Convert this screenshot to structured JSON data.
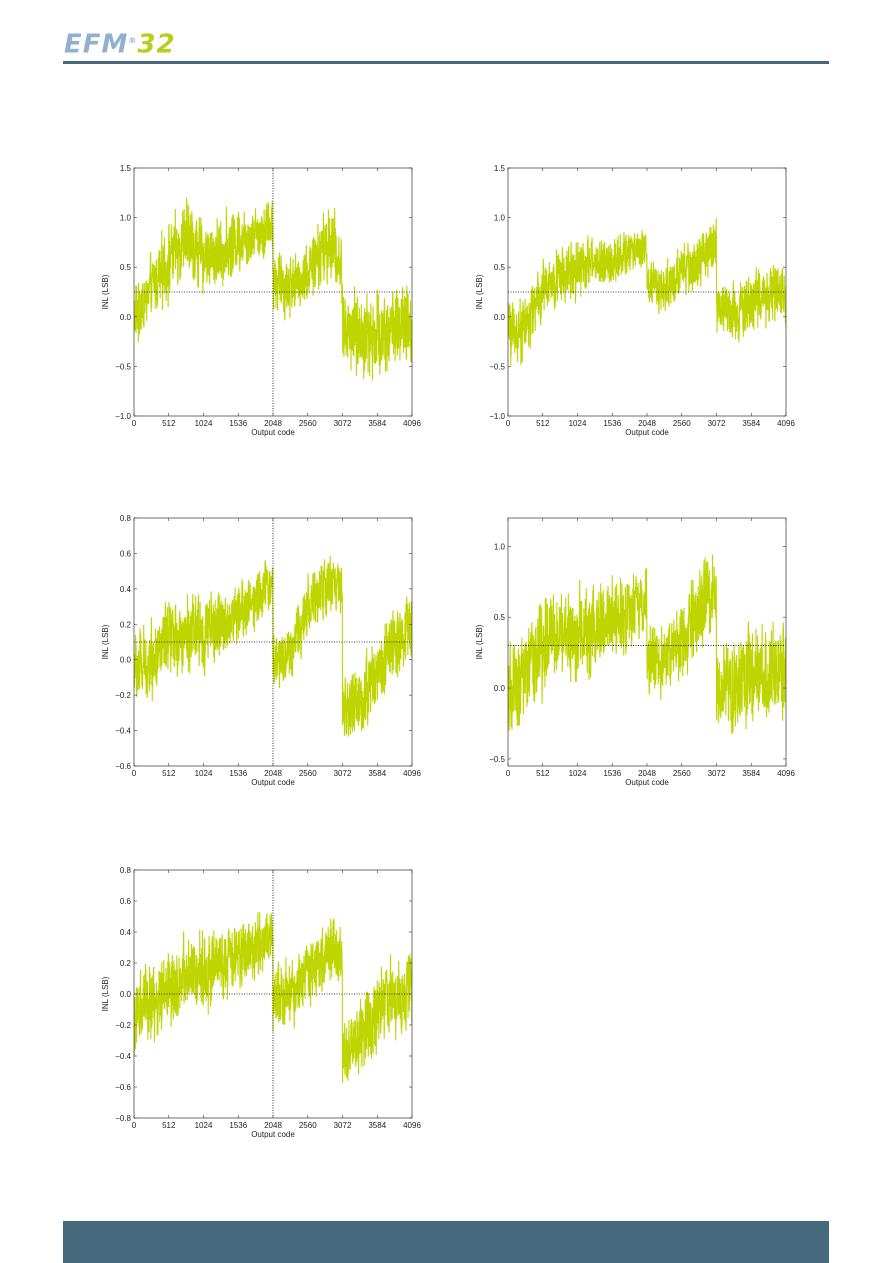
{
  "header": {
    "logo_text_primary": "EFM",
    "logo_text_secondary": "32",
    "logo_mark": "®",
    "accent_color": "#b9cd1c",
    "logo_color": "#8fb1cf",
    "rule_color": "#46697e"
  },
  "footer": {
    "bar_color": "#46697e"
  },
  "chart_data": [
    {
      "type": "line",
      "xlabel": "Output code",
      "ylabel": "INL (LSB)",
      "xlim": [
        0,
        4096
      ],
      "ylim": [
        -1.0,
        1.5
      ],
      "xticks": [
        0,
        512,
        1024,
        1536,
        2048,
        2560,
        3072,
        3584,
        4096
      ],
      "xtick_labels": [
        "0",
        "512",
        "1024",
        "1536",
        "2048",
        "2560",
        "3072",
        "3584",
        "4096"
      ],
      "yticks": [
        -1.0,
        -0.5,
        0.0,
        0.5,
        1.0,
        1.5
      ],
      "ytick_labels": [
        "−1.0",
        "−0.5",
        "0.0",
        "0.5",
        "1.0",
        "1.5"
      ],
      "reference_line_y": 0.25,
      "vertical_line_x": 2048,
      "line_color": "#bed500",
      "envelope": {
        "x": [
          0,
          128,
          256,
          512,
          768,
          1024,
          1280,
          1536,
          1792,
          2047,
          2048,
          2304,
          2560,
          2816,
          2944,
          3071,
          3072,
          3328,
          3584,
          3840,
          4095
        ],
        "center": [
          0.0,
          0.1,
          0.3,
          0.55,
          0.8,
          0.6,
          0.65,
          0.8,
          0.85,
          0.95,
          0.35,
          0.3,
          0.45,
          0.7,
          0.75,
          0.4,
          -0.1,
          -0.2,
          -0.15,
          -0.1,
          -0.15
        ],
        "spread": [
          0.35,
          0.4,
          0.35,
          0.45,
          0.45,
          0.4,
          0.4,
          0.4,
          0.35,
          0.35,
          0.35,
          0.35,
          0.35,
          0.45,
          0.45,
          0.35,
          0.45,
          0.5,
          0.5,
          0.5,
          0.5
        ]
      }
    },
    {
      "type": "line",
      "xlabel": "Output code",
      "ylabel": "INL (LSB)",
      "xlim": [
        0,
        4096
      ],
      "ylim": [
        -1.0,
        1.5
      ],
      "xticks": [
        0,
        512,
        1024,
        1536,
        2048,
        2560,
        3072,
        3584,
        4096
      ],
      "xtick_labels": [
        "0",
        "512",
        "1024",
        "1536",
        "2048",
        "2560",
        "3072",
        "3584",
        "4096"
      ],
      "yticks": [
        -1.0,
        -0.5,
        0.0,
        0.5,
        1.0,
        1.5
      ],
      "ytick_labels": [
        "−1.0",
        "−0.5",
        "0.0",
        "0.5",
        "1.0",
        "1.5"
      ],
      "reference_line_y": 0.25,
      "vertical_line_x": null,
      "line_color": "#bed500",
      "envelope": {
        "x": [
          0,
          128,
          256,
          512,
          768,
          1024,
          1280,
          1536,
          1792,
          2047,
          2048,
          2304,
          2560,
          2816,
          2944,
          3071,
          3072,
          3328,
          3584,
          3840,
          4095
        ],
        "center": [
          -0.1,
          -0.15,
          -0.1,
          0.25,
          0.4,
          0.5,
          0.55,
          0.55,
          0.65,
          0.7,
          0.3,
          0.3,
          0.45,
          0.55,
          0.65,
          0.8,
          0.1,
          0.05,
          0.15,
          0.25,
          0.2
        ],
        "spread": [
          0.35,
          0.4,
          0.35,
          0.35,
          0.35,
          0.35,
          0.3,
          0.3,
          0.25,
          0.25,
          0.25,
          0.3,
          0.3,
          0.3,
          0.3,
          0.3,
          0.3,
          0.35,
          0.35,
          0.35,
          0.35
        ]
      }
    },
    {
      "type": "line",
      "xlabel": "Output code",
      "ylabel": "INL (LSB)",
      "xlim": [
        0,
        4096
      ],
      "ylim": [
        -0.6,
        0.8
      ],
      "xticks": [
        0,
        512,
        1024,
        1536,
        2048,
        2560,
        3072,
        3584,
        4096
      ],
      "xtick_labels": [
        "0",
        "512",
        "1024",
        "1536",
        "2048",
        "2560",
        "3072",
        "3584",
        "4096"
      ],
      "yticks": [
        -0.6,
        -0.4,
        -0.2,
        0.0,
        0.2,
        0.4,
        0.6,
        0.8
      ],
      "ytick_labels": [
        "−0.6",
        "−0.4",
        "−0.2",
        "0.0",
        "0.2",
        "0.4",
        "0.6",
        "0.8"
      ],
      "reference_line_y": 0.1,
      "vertical_line_x": 2048,
      "line_color": "#bed500",
      "envelope": {
        "x": [
          0,
          128,
          256,
          512,
          768,
          1024,
          1280,
          1536,
          1792,
          2047,
          2048,
          2304,
          2560,
          2816,
          2944,
          3071,
          3072,
          3328,
          3584,
          3840,
          4095
        ],
        "center": [
          -0.05,
          -0.05,
          0.0,
          0.1,
          0.15,
          0.15,
          0.2,
          0.25,
          0.35,
          0.45,
          0.0,
          0.05,
          0.3,
          0.4,
          0.45,
          0.35,
          -0.3,
          -0.25,
          -0.05,
          0.1,
          0.2
        ],
        "spread": [
          0.25,
          0.25,
          0.25,
          0.25,
          0.25,
          0.25,
          0.2,
          0.2,
          0.2,
          0.15,
          0.2,
          0.2,
          0.2,
          0.2,
          0.2,
          0.15,
          0.2,
          0.25,
          0.25,
          0.25,
          0.25
        ]
      }
    },
    {
      "type": "line",
      "xlabel": "Output code",
      "ylabel": "INL (LSB)",
      "xlim": [
        0,
        4096
      ],
      "ylim": [
        -0.55,
        1.2
      ],
      "xticks": [
        0,
        512,
        1024,
        1536,
        2048,
        2560,
        3072,
        3584,
        4096
      ],
      "xtick_labels": [
        "0",
        "512",
        "1024",
        "1536",
        "2048",
        "2560",
        "3072",
        "3584",
        "4096"
      ],
      "yticks": [
        -0.5,
        0.0,
        0.5,
        1.0
      ],
      "ytick_labels": [
        "−0.5",
        "0.0",
        "0.5",
        "1.0"
      ],
      "reference_line_y": 0.3,
      "vertical_line_x": null,
      "line_color": "#bed500",
      "envelope": {
        "x": [
          0,
          128,
          256,
          512,
          768,
          1024,
          1280,
          1536,
          1792,
          2047,
          2048,
          2304,
          2560,
          2816,
          2944,
          3071,
          3072,
          3328,
          3584,
          3840,
          4095
        ],
        "center": [
          -0.1,
          0.0,
          0.1,
          0.3,
          0.4,
          0.35,
          0.4,
          0.5,
          0.55,
          0.6,
          0.2,
          0.2,
          0.3,
          0.55,
          0.65,
          0.6,
          0.0,
          0.05,
          0.05,
          0.1,
          0.15
        ],
        "spread": [
          0.4,
          0.4,
          0.4,
          0.4,
          0.4,
          0.4,
          0.35,
          0.35,
          0.3,
          0.25,
          0.3,
          0.3,
          0.3,
          0.35,
          0.35,
          0.3,
          0.35,
          0.4,
          0.4,
          0.4,
          0.4
        ]
      }
    },
    {
      "type": "line",
      "xlabel": "Output code",
      "ylabel": "INL (LSB)",
      "xlim": [
        0,
        4096
      ],
      "ylim": [
        -0.8,
        0.8
      ],
      "xticks": [
        0,
        512,
        1024,
        1536,
        2048,
        2560,
        3072,
        3584,
        4096
      ],
      "xtick_labels": [
        "0",
        "512",
        "1024",
        "1536",
        "2048",
        "2560",
        "3072",
        "3584",
        "4096"
      ],
      "yticks": [
        -0.8,
        -0.6,
        -0.4,
        -0.2,
        0.0,
        0.2,
        0.4,
        0.6,
        0.8
      ],
      "ytick_labels": [
        "−0.8",
        "−0.6",
        "−0.4",
        "−0.2",
        "0.0",
        "0.2",
        "0.4",
        "0.6",
        "0.8"
      ],
      "reference_line_y": 0.0,
      "vertical_line_x": 2048,
      "line_color": "#bed500",
      "envelope": {
        "x": [
          0,
          128,
          256,
          512,
          768,
          1024,
          1280,
          1536,
          1792,
          2047,
          2048,
          2304,
          2560,
          2816,
          2944,
          3071,
          3072,
          3328,
          3584,
          3840,
          4095
        ],
        "center": [
          -0.2,
          -0.1,
          -0.05,
          0.05,
          0.1,
          0.15,
          0.2,
          0.25,
          0.3,
          0.4,
          -0.05,
          0.0,
          0.15,
          0.25,
          0.3,
          0.2,
          -0.4,
          -0.3,
          -0.1,
          0.0,
          0.05
        ],
        "spread": [
          0.3,
          0.3,
          0.3,
          0.3,
          0.3,
          0.3,
          0.25,
          0.25,
          0.25,
          0.2,
          0.25,
          0.25,
          0.25,
          0.25,
          0.25,
          0.2,
          0.25,
          0.3,
          0.3,
          0.3,
          0.3
        ]
      }
    }
  ]
}
